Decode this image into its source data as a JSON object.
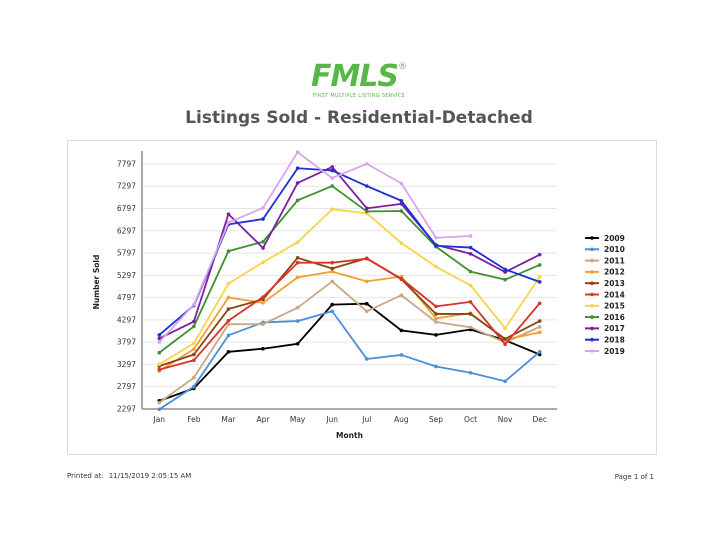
{
  "brand": {
    "logo": "FMLS",
    "reg_mark": "®",
    "tagline": "FIRST MULTIPLE LISTING SERVICE",
    "logo_color": "#57b848"
  },
  "report": {
    "title": "Listings Sold - Residential-Detached"
  },
  "footer": {
    "printed_label": "Printed at:",
    "printed_value": "11/15/2019 2:05:15 AM",
    "page_label": "Page 1 of 1"
  },
  "chart_data": {
    "type": "line",
    "xlabel": "Month",
    "ylabel": "Number Sold",
    "categories": [
      "Jan",
      "Feb",
      "Mar",
      "Apr",
      "May",
      "Jun",
      "Jul",
      "Aug",
      "Sep",
      "Oct",
      "Nov",
      "Dec"
    ],
    "yticks": [
      2297,
      2797,
      3297,
      3797,
      4297,
      4797,
      5297,
      5797,
      6297,
      6797,
      7297,
      7797
    ],
    "ylim": [
      2297,
      7997
    ],
    "grid": "horizontal",
    "legend_position": "right",
    "series": [
      {
        "name": "2009",
        "color": "#000000",
        "values": [
          2480,
          2760,
          3580,
          3650,
          3760,
          4640,
          4660,
          4060,
          3960,
          4080,
          3840,
          3520
        ]
      },
      {
        "name": "2010",
        "color": "#4a90d9",
        "values": [
          2290,
          2800,
          3950,
          4240,
          4270,
          4490,
          3420,
          3510,
          3250,
          3110,
          2920,
          3580
        ]
      },
      {
        "name": "2011",
        "color": "#c8a882",
        "values": [
          2440,
          3000,
          4200,
          4200,
          4570,
          5160,
          4490,
          4850,
          4250,
          4130,
          3790,
          4140
        ]
      },
      {
        "name": "2012",
        "color": "#f0a030",
        "values": [
          3150,
          3640,
          4800,
          4680,
          5250,
          5380,
          5160,
          5270,
          4330,
          4450,
          3850,
          4020
        ]
      },
      {
        "name": "2013",
        "color": "#8b4513",
        "values": [
          3260,
          3520,
          4540,
          4760,
          5690,
          5450,
          5680,
          5210,
          4430,
          4430,
          3870,
          4270
        ]
      },
      {
        "name": "2014",
        "color": "#d9342b",
        "values": [
          3180,
          3390,
          4280,
          4810,
          5580,
          5580,
          5670,
          5220,
          4600,
          4700,
          3750,
          4670
        ]
      },
      {
        "name": "2015",
        "color": "#f7d44a",
        "values": [
          3300,
          3770,
          5110,
          5590,
          6040,
          6780,
          6690,
          6020,
          5490,
          5070,
          4110,
          5260
        ]
      },
      {
        "name": "2016",
        "color": "#3f8f2c",
        "values": [
          3560,
          4150,
          5840,
          6050,
          6980,
          7300,
          6730,
          6740,
          5940,
          5380,
          5200,
          5530
        ]
      },
      {
        "name": "2017",
        "color": "#7a1fa2",
        "values": [
          3880,
          4260,
          6670,
          5910,
          7370,
          7730,
          6800,
          6900,
          5980,
          5780,
          5370,
          5760
        ]
      },
      {
        "name": "2018",
        "color": "#1f2fd6",
        "values": [
          3960,
          4620,
          6440,
          6560,
          7700,
          7650,
          7300,
          6970,
          5960,
          5920,
          5430,
          5150
        ]
      },
      {
        "name": "2019",
        "color": "#d9a3f0",
        "values": [
          3800,
          4640,
          6480,
          6810,
          8060,
          7480,
          7800,
          7360,
          6140,
          6180,
          null,
          null
        ]
      }
    ]
  }
}
